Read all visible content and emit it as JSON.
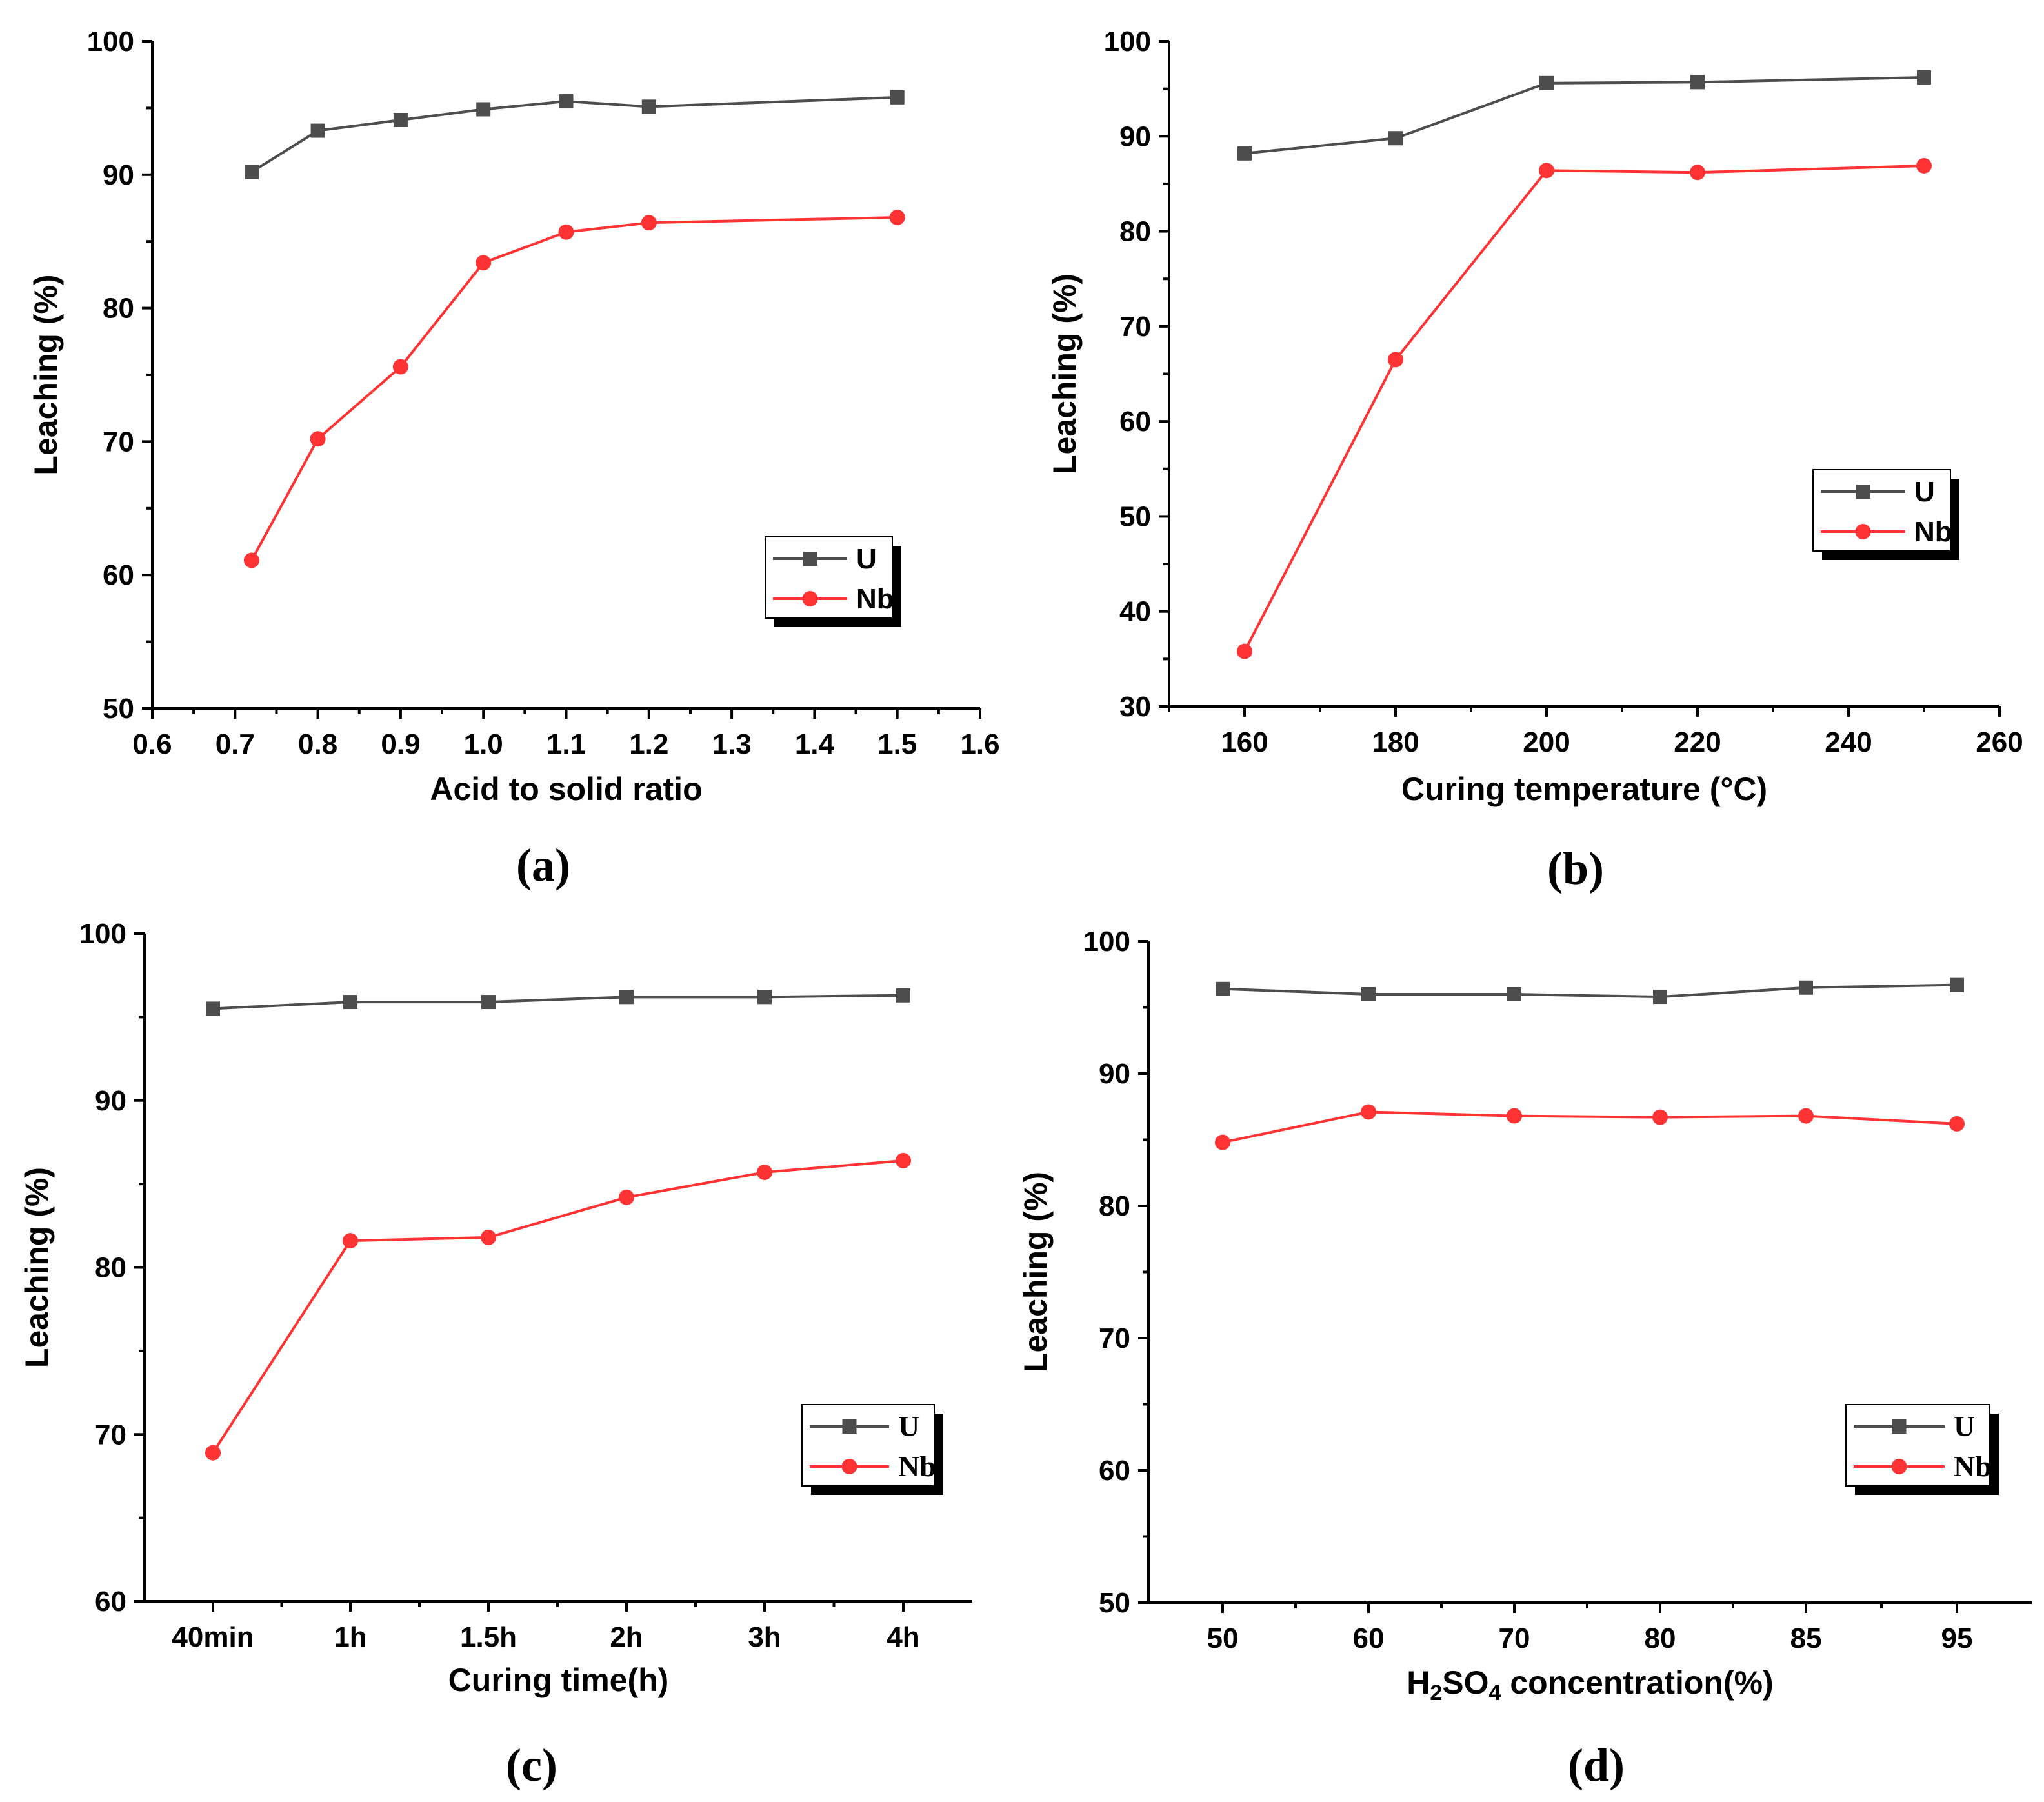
{
  "chart_data": [
    {
      "type": "line",
      "panel_label": "(a)",
      "xlabel": "Acid to solid ratio",
      "ylabel": "Leaching (%)",
      "xlim": [
        0.6,
        1.6
      ],
      "ylim": [
        50,
        100
      ],
      "x_ticks": [
        "0.6",
        "0.7",
        "0.8",
        "0.9",
        "1.0",
        "1.1",
        "1.2",
        "1.3",
        "1.4",
        "1.5",
        "1.6"
      ],
      "y_ticks": [
        "50",
        "60",
        "70",
        "80",
        "90",
        "100"
      ],
      "legend_position": "bottom-right",
      "series": [
        {
          "name": "U",
          "color": "#4d4d4d",
          "marker": "square",
          "x": [
            0.72,
            0.8,
            0.9,
            1.0,
            1.1,
            1.2,
            1.5
          ],
          "values": [
            90.2,
            93.3,
            94.1,
            94.9,
            95.5,
            95.1,
            95.8
          ]
        },
        {
          "name": "Nb",
          "color": "#ff3333",
          "marker": "circle",
          "x": [
            0.72,
            0.8,
            0.9,
            1.0,
            1.1,
            1.2,
            1.5
          ],
          "values": [
            61.1,
            70.2,
            75.6,
            83.4,
            85.7,
            86.4,
            86.8
          ]
        }
      ]
    },
    {
      "type": "line",
      "panel_label": "(b)",
      "xlabel": "Curing temperature (°C)",
      "ylabel": "Leaching (%)",
      "xlim": [
        150,
        260
      ],
      "ylim": [
        30,
        100
      ],
      "x_ticks": [
        "160",
        "180",
        "200",
        "220",
        "240",
        "260"
      ],
      "y_ticks": [
        "30",
        "40",
        "50",
        "60",
        "70",
        "80",
        "90",
        "100"
      ],
      "legend_position": "center-right",
      "series": [
        {
          "name": "U",
          "color": "#4d4d4d",
          "marker": "square",
          "x": [
            160,
            180,
            200,
            220,
            250
          ],
          "values": [
            88.2,
            89.8,
            95.6,
            95.7,
            96.2
          ]
        },
        {
          "name": "Nb",
          "color": "#ff3333",
          "marker": "circle",
          "x": [
            160,
            180,
            200,
            220,
            250
          ],
          "values": [
            35.8,
            66.5,
            86.4,
            86.2,
            86.9
          ]
        }
      ]
    },
    {
      "type": "line",
      "panel_label": "(c)",
      "xlabel": "Curing time(h)",
      "ylabel": "Leaching (%)",
      "categories": [
        "40min",
        "1h",
        "1.5h",
        "2h",
        "3h",
        "4h"
      ],
      "ylim": [
        60,
        100
      ],
      "y_ticks": [
        "60",
        "70",
        "80",
        "90",
        "100"
      ],
      "legend_position": "bottom-right",
      "series": [
        {
          "name": "U",
          "color": "#4d4d4d",
          "marker": "square",
          "values": [
            95.5,
            95.9,
            95.9,
            96.2,
            96.2,
            96.3
          ]
        },
        {
          "name": "Nb",
          "color": "#ff3333",
          "marker": "circle",
          "values": [
            68.9,
            81.6,
            81.8,
            84.2,
            85.7,
            86.4
          ]
        }
      ]
    },
    {
      "type": "line",
      "panel_label": "(d)",
      "xlabel": "H2SO4 concentration(%)",
      "xlabel_parts": [
        "H",
        "2",
        "SO",
        "4",
        " concentration(%)"
      ],
      "ylabel": "Leaching (%)",
      "categories": [
        "50",
        "60",
        "70",
        "80",
        "85",
        "95"
      ],
      "ylim": [
        50,
        100
      ],
      "y_ticks": [
        "50",
        "60",
        "70",
        "80",
        "90",
        "100"
      ],
      "legend_position": "bottom-right",
      "series": [
        {
          "name": "U",
          "color": "#4d4d4d",
          "marker": "square",
          "values": [
            96.4,
            96.0,
            96.0,
            95.8,
            96.5,
            96.7
          ]
        },
        {
          "name": "Nb",
          "color": "#ff3333",
          "marker": "circle",
          "values": [
            84.8,
            87.1,
            86.8,
            86.7,
            86.8,
            86.2
          ]
        }
      ]
    }
  ]
}
